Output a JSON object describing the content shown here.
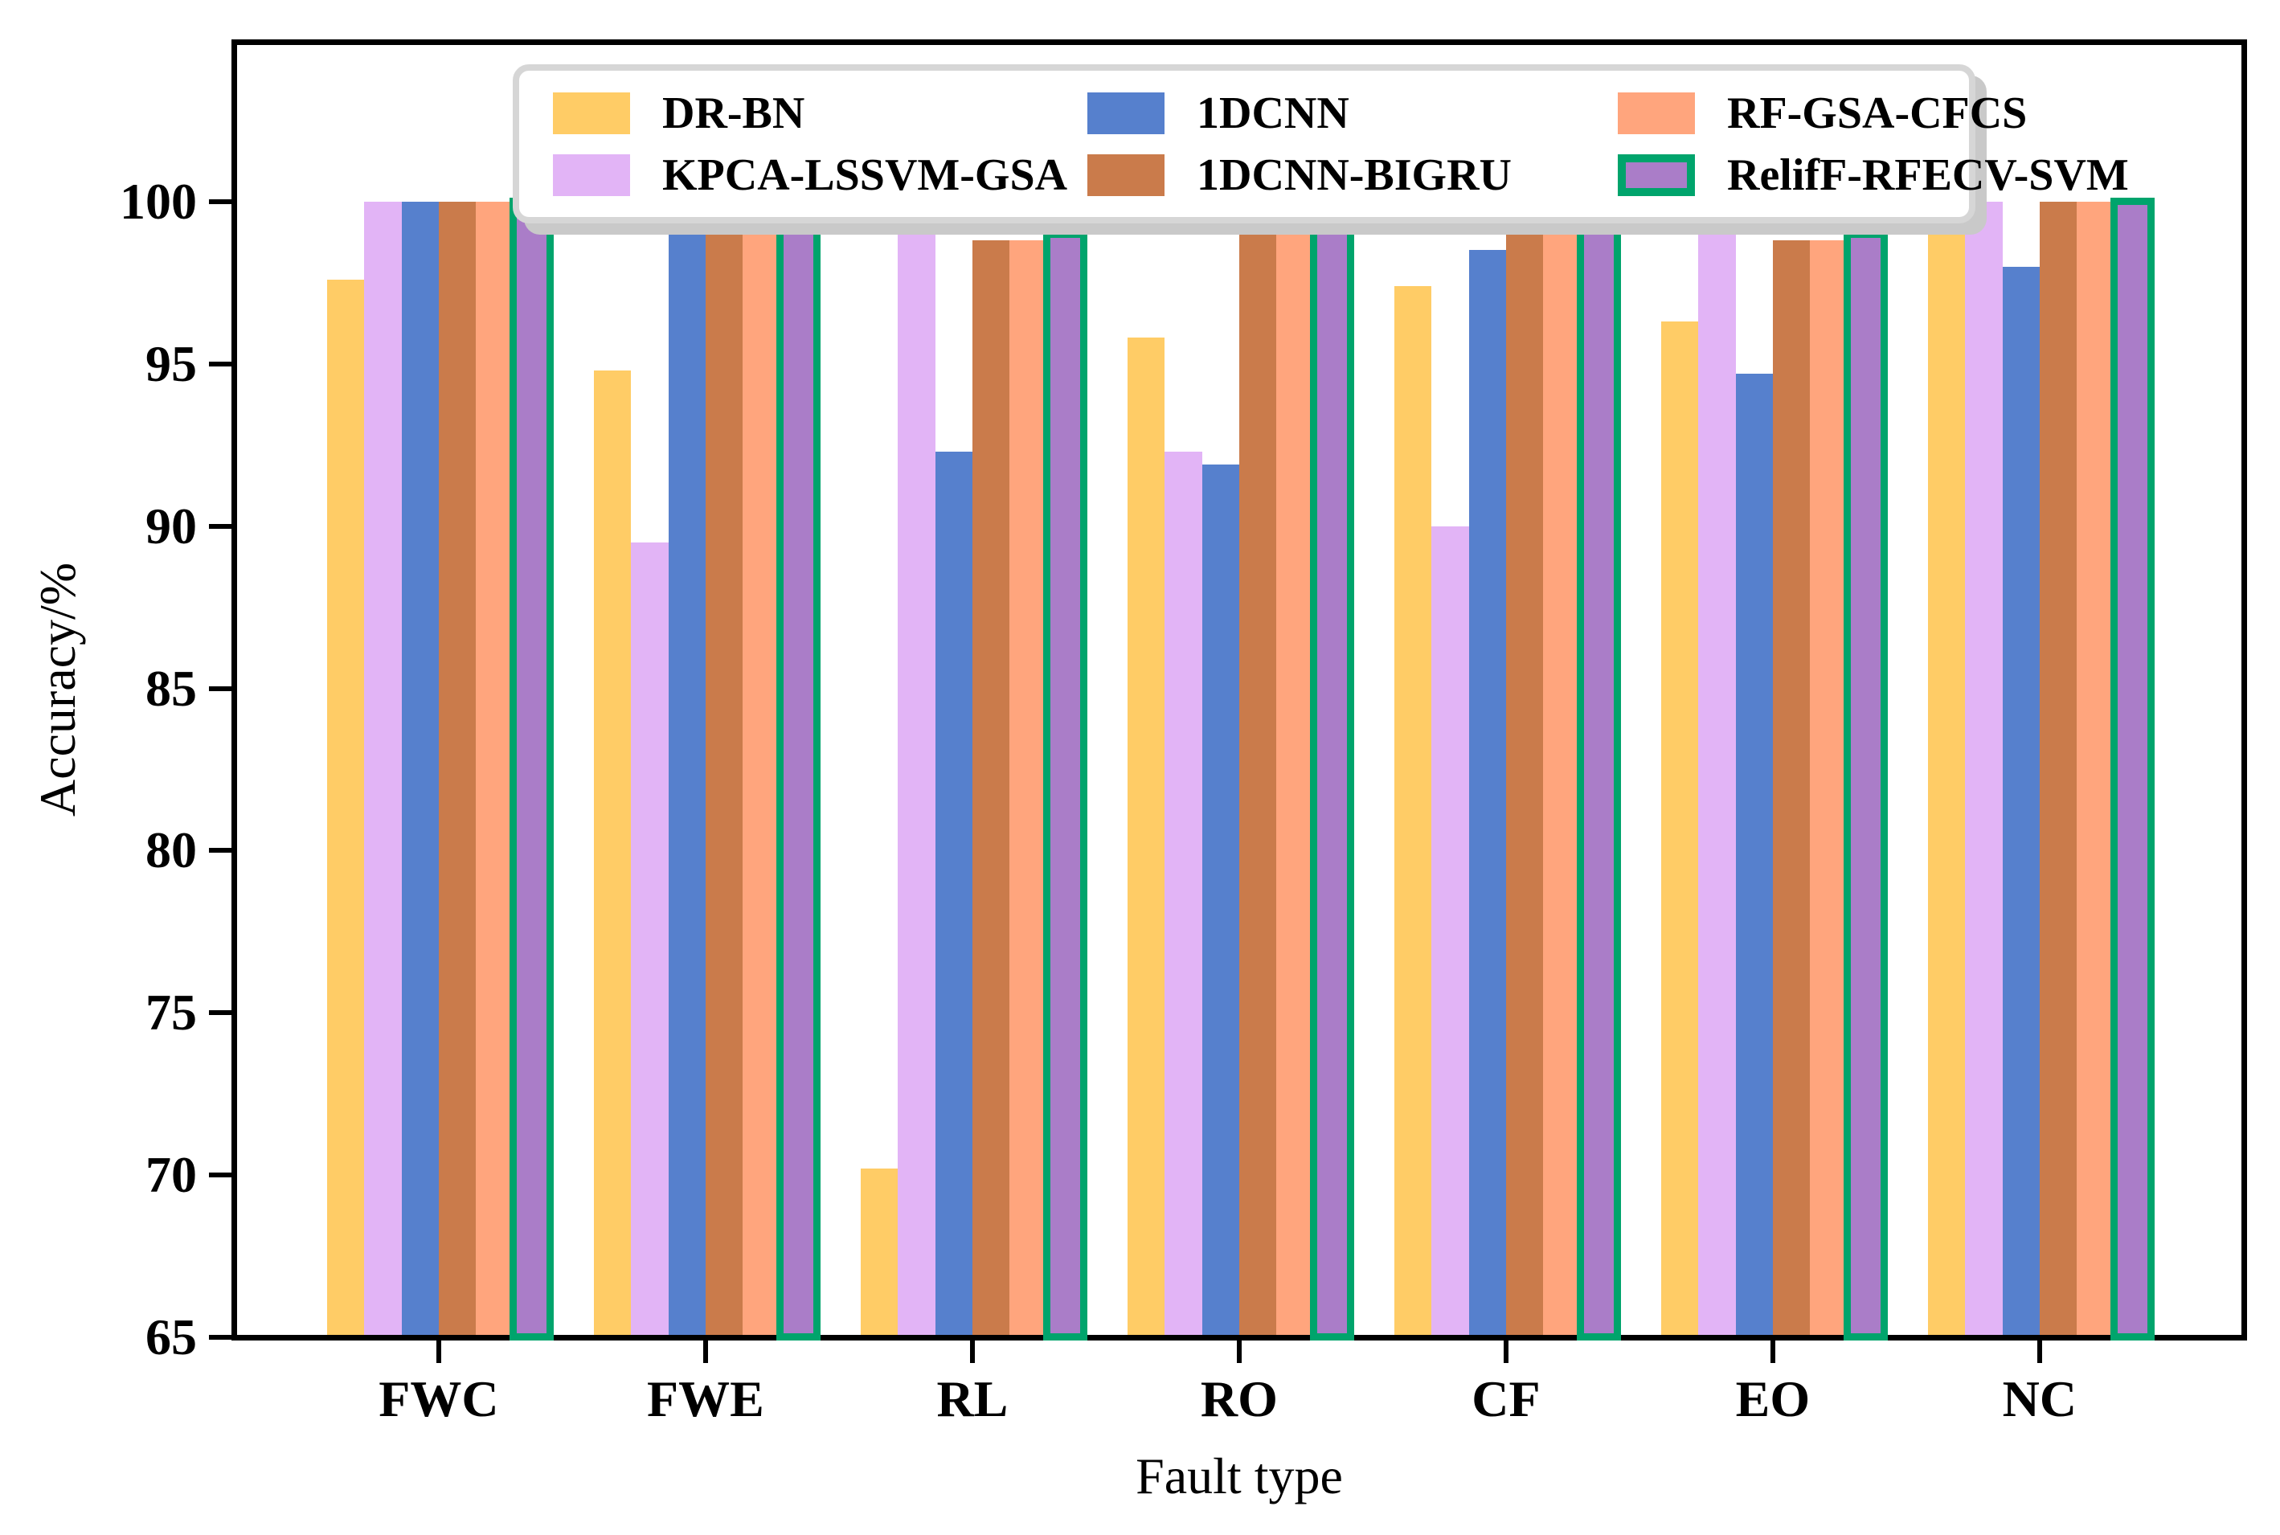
{
  "axes": {
    "xlabel": "Fault type",
    "ylabel": "Accuracy/%"
  },
  "chart_data": {
    "type": "bar",
    "title": "",
    "xlabel": "Fault type",
    "ylabel": "Accuracy/%",
    "categories": [
      "FWC",
      "FWE",
      "RL",
      "RO",
      "CF",
      "EO",
      "NC"
    ],
    "yticks": [
      65,
      70,
      75,
      80,
      85,
      90,
      95,
      100
    ],
    "ylim": [
      65,
      104.9
    ],
    "grid": false,
    "legend_position": "upper center, 3 columns, inside plot",
    "series": [
      {
        "name": "DR-BN",
        "color": "#FFCC66",
        "values": [
          97.6,
          94.8,
          70.2,
          95.8,
          97.4,
          96.3,
          99.0
        ]
      },
      {
        "name": "KPCA-LSSVM-GSA",
        "color": "#E2B4F6",
        "values": [
          100.0,
          89.5,
          100.0,
          92.3,
          90.0,
          100.0,
          100.0
        ]
      },
      {
        "name": "1DCNN",
        "color": "#5680CD",
        "values": [
          100.0,
          99.8,
          92.3,
          91.9,
          98.5,
          94.7,
          98.0
        ]
      },
      {
        "name": "1DCNN-BIGRU",
        "color": "#CA7B4B",
        "values": [
          100.0,
          100.0,
          98.8,
          99.4,
          100.0,
          98.8,
          100.0
        ]
      },
      {
        "name": "RF-GSA-CFCS",
        "color": "#FFA57D",
        "values": [
          100.0,
          100.0,
          98.8,
          99.4,
          100.0,
          98.8,
          100.0
        ]
      },
      {
        "name": "RelifF-RFECV-SVM",
        "color": "#AA7DC8",
        "edge_color": "#00A46C",
        "values": [
          100.0,
          100.0,
          99.0,
          99.9,
          99.9,
          99.0,
          100.0
        ]
      }
    ],
    "colors": {
      "spine": "#000000",
      "legend_border": "#d6d6d6",
      "legend_shadow": "#c9c9c9",
      "background": "#ffffff"
    }
  }
}
